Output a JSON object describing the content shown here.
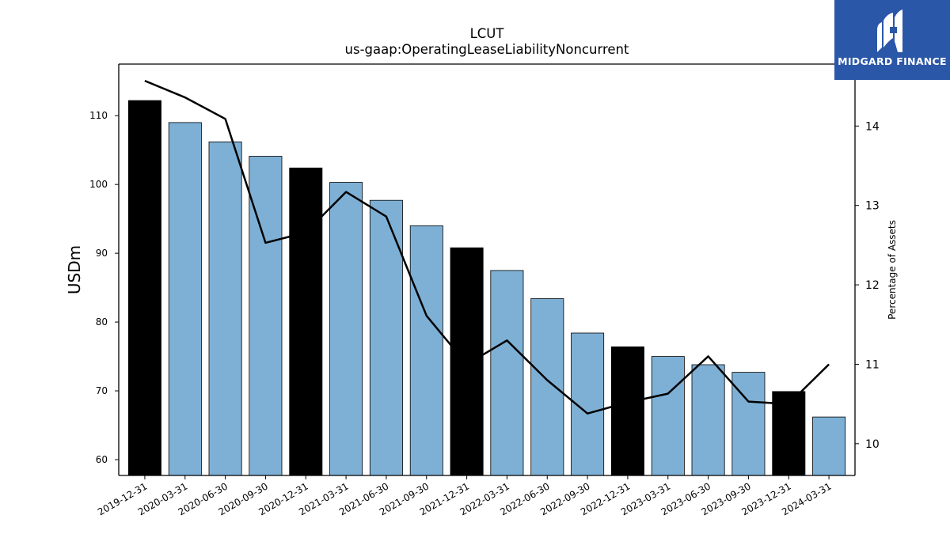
{
  "chart_data": {
    "type": "bar",
    "title": "LCUT",
    "subtitle": "us-gaap:OperatingLeaseLiabilityNoncurrent",
    "ylabel": "USDm",
    "y2label": "Percentage of Assets",
    "categories": [
      "2019-12-31",
      "2020-03-31",
      "2020-06-30",
      "2020-09-30",
      "2020-12-31",
      "2021-03-31",
      "2021-06-30",
      "2021-09-30",
      "2021-12-31",
      "2022-03-31",
      "2022-06-30",
      "2022-09-30",
      "2022-12-31",
      "2023-03-31",
      "2023-06-30",
      "2023-09-30",
      "2023-12-31",
      "2024-03-31"
    ],
    "series": [
      {
        "type": "bar",
        "values": [
          112.2,
          109.0,
          106.2,
          104.1,
          102.4,
          100.3,
          97.7,
          94.0,
          90.8,
          87.5,
          83.4,
          78.4,
          76.4,
          75.0,
          73.8,
          72.7,
          69.9,
          66.2
        ],
        "highlight_year_end": true
      },
      {
        "type": "line",
        "axis": "right",
        "values": [
          14.57,
          14.36,
          14.09,
          12.53,
          12.66,
          13.17,
          12.86,
          11.61,
          11.0,
          11.3,
          10.8,
          10.38,
          10.52,
          10.63,
          11.1,
          10.53,
          10.5,
          11.0
        ]
      }
    ],
    "y_ticks": [
      60,
      70,
      80,
      90,
      100,
      110
    ],
    "y2_ticks": [
      10,
      11,
      12,
      13,
      14
    ],
    "ylim": [
      57.7,
      117.5
    ],
    "y2lim": [
      9.6,
      14.78
    ],
    "colors": {
      "bar": "#7eb0d5",
      "bar_highlight": "#000000",
      "line": "#000000"
    }
  },
  "logo": {
    "text": "MIDGARD FINANCE",
    "background": "#2b57a8"
  }
}
